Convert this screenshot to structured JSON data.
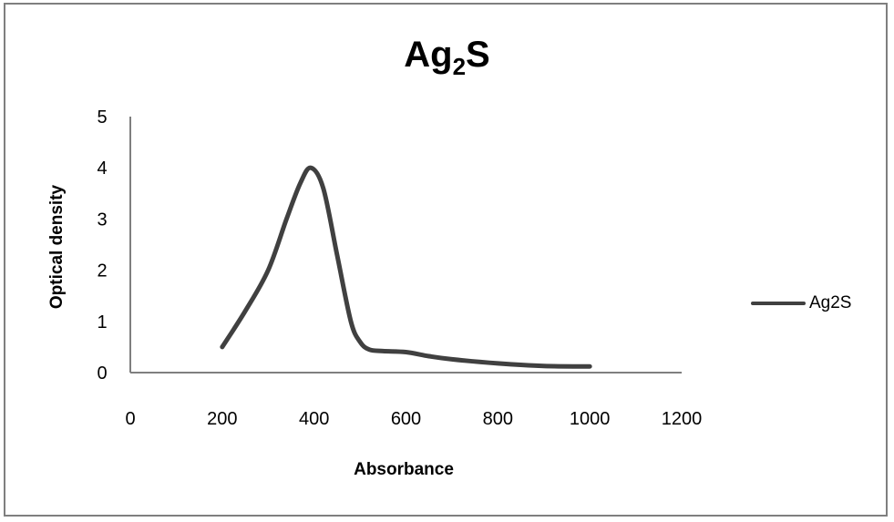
{
  "chart": {
    "title_main": "Ag",
    "title_sub": "2",
    "title_end": "S",
    "ylabel": "Optical density",
    "xlabel": "Absorbance",
    "legend_label": "Ag2S",
    "line_color": "#404040",
    "axis_color": "#7f7f7f"
  },
  "chart_data": {
    "type": "line",
    "title": "Ag2S",
    "xlabel": "Absorbance",
    "ylabel": "Optical density",
    "xlim": [
      0,
      1200
    ],
    "ylim": [
      0,
      5
    ],
    "xticks": [
      0,
      200,
      400,
      600,
      800,
      1000,
      1200
    ],
    "yticks": [
      0,
      1,
      2,
      3,
      4,
      5
    ],
    "grid": false,
    "legend_position": "right",
    "note": "Curve values estimated from pixel positions; only axis ticks are labeled.",
    "series": [
      {
        "name": "Ag2S",
        "x": [
          200,
          250,
          300,
          340,
          370,
          393,
          420,
          450,
          480,
          500,
          520,
          550,
          600,
          650,
          700,
          800,
          900,
          1000
        ],
        "y": [
          0.5,
          1.2,
          2.0,
          3.0,
          3.7,
          4.0,
          3.6,
          2.3,
          1.0,
          0.6,
          0.45,
          0.42,
          0.4,
          0.32,
          0.26,
          0.18,
          0.13,
          0.12
        ]
      }
    ]
  }
}
